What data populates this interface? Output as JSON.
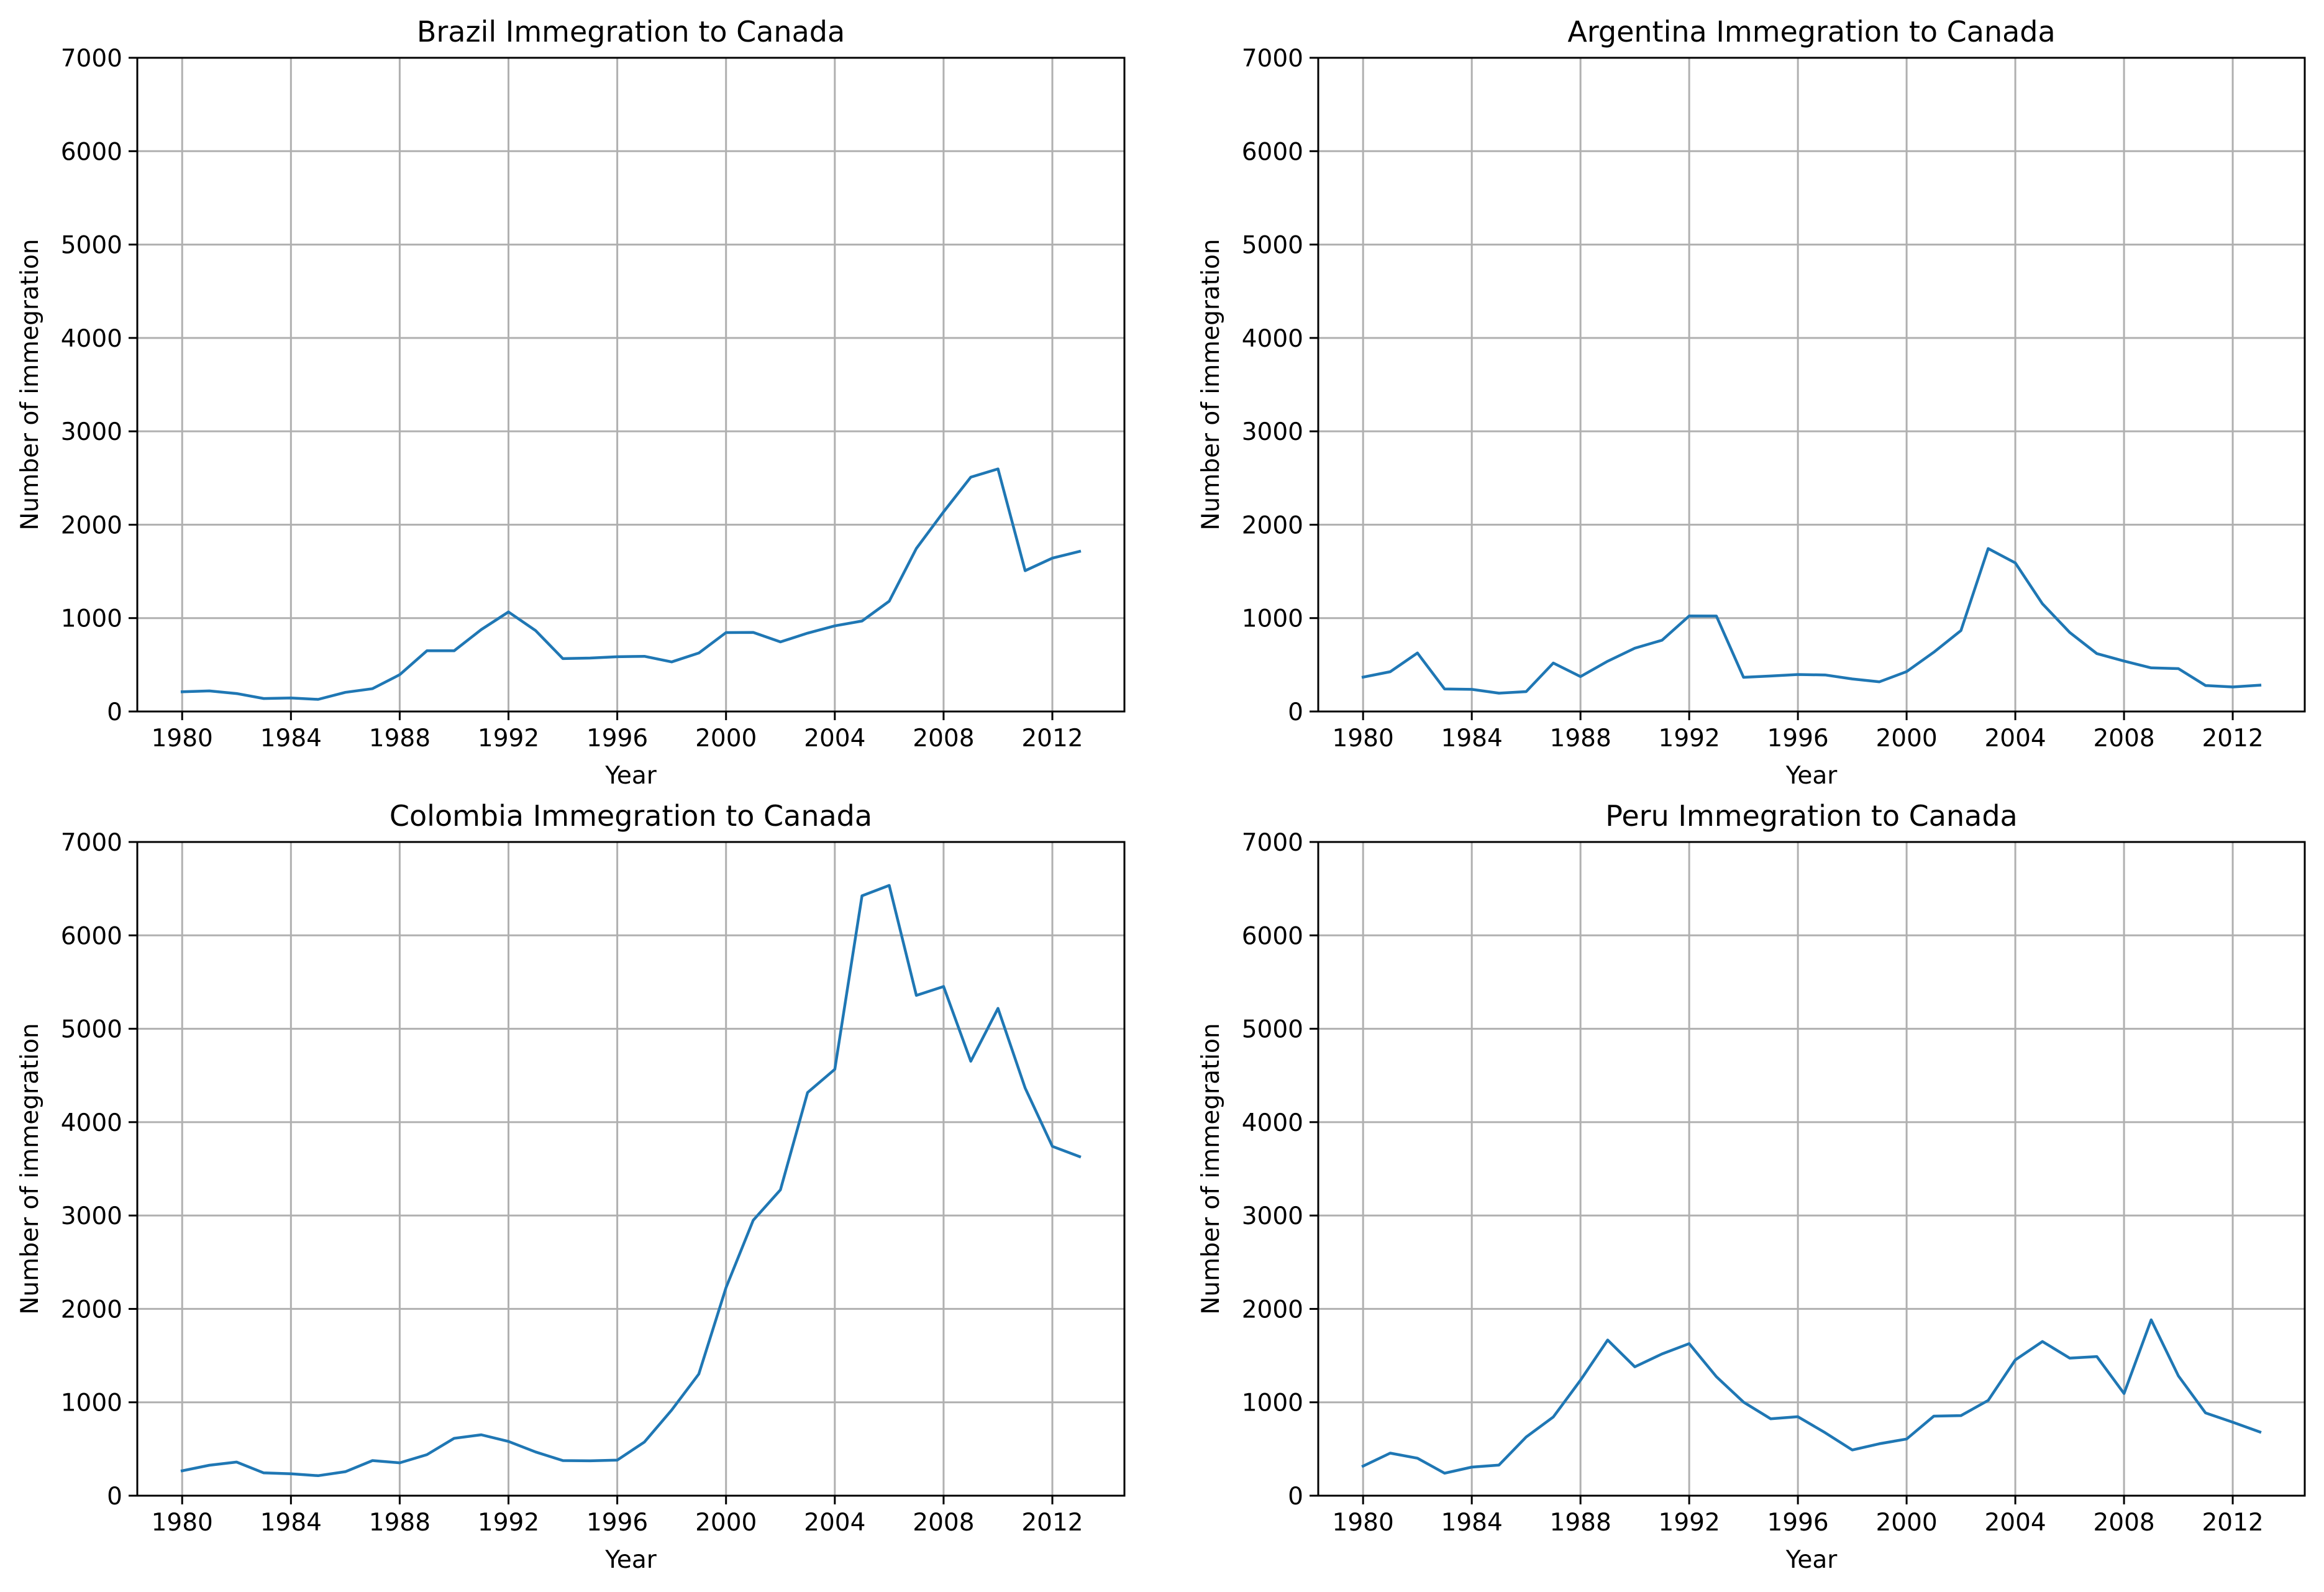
{
  "series_color": "#1f77b4",
  "chart_data": [
    {
      "type": "line",
      "title": "Brazil Immegration to Canada",
      "xlabel": "Year",
      "ylabel": "Number of immegration",
      "ylim": [
        0,
        7000
      ],
      "xlim": [
        1980,
        2013
      ],
      "grid": true,
      "xticks": [
        1980,
        1984,
        1988,
        1992,
        1996,
        2000,
        2004,
        2008,
        2012
      ],
      "yticks": [
        0,
        1000,
        2000,
        3000,
        4000,
        5000,
        6000,
        7000
      ],
      "x": [
        1980,
        1981,
        1982,
        1983,
        1984,
        1985,
        1986,
        1987,
        1988,
        1989,
        1990,
        1991,
        1992,
        1993,
        1994,
        1995,
        1996,
        1997,
        1998,
        1999,
        2000,
        2001,
        2002,
        2003,
        2004,
        2005,
        2006,
        2007,
        2008,
        2009,
        2010,
        2011,
        2012,
        2013
      ],
      "values": [
        211,
        220,
        192,
        139,
        145,
        130,
        205,
        244,
        394,
        650,
        650,
        877,
        1066,
        866,
        566,
        572,
        586,
        591,
        531,
        626,
        845,
        847,
        745,
        839,
        917,
        969,
        1181,
        1746,
        2138,
        2509,
        2598,
        1508,
        1642,
        1714
      ]
    },
    {
      "type": "line",
      "title": "Argentina Immegration to Canada",
      "xlabel": "Year",
      "ylabel": "Number of immegration",
      "ylim": [
        0,
        7000
      ],
      "xlim": [
        1980,
        2013
      ],
      "grid": true,
      "xticks": [
        1980,
        1984,
        1988,
        1992,
        1996,
        2000,
        2004,
        2008,
        2012
      ],
      "yticks": [
        0,
        1000,
        2000,
        3000,
        4000,
        5000,
        6000,
        7000
      ],
      "x": [
        1980,
        1981,
        1982,
        1983,
        1984,
        1985,
        1986,
        1987,
        1988,
        1989,
        1990,
        1991,
        1992,
        1993,
        1994,
        1995,
        1996,
        1997,
        1998,
        1999,
        2000,
        2001,
        2002,
        2003,
        2004,
        2005,
        2006,
        2007,
        2008,
        2009,
        2010,
        2011,
        2012,
        2013
      ],
      "values": [
        368,
        426,
        626,
        241,
        237,
        196,
        213,
        519,
        374,
        538,
        678,
        763,
        1023,
        1022,
        366,
        380,
        396,
        391,
        349,
        318,
        427,
        635,
        867,
        1745,
        1591,
        1153,
        847,
        620,
        540,
        467,
        459,
        278,
        263,
        282
      ]
    },
    {
      "type": "line",
      "title": "Colombia Immegration to Canada",
      "xlabel": "Year",
      "ylabel": "Number of immegration",
      "ylim": [
        0,
        7000
      ],
      "xlim": [
        1980,
        2013
      ],
      "grid": true,
      "xticks": [
        1980,
        1984,
        1988,
        1992,
        1996,
        2000,
        2004,
        2008,
        2012
      ],
      "yticks": [
        0,
        1000,
        2000,
        3000,
        4000,
        5000,
        6000,
        7000
      ],
      "x": [
        1980,
        1981,
        1982,
        1983,
        1984,
        1985,
        1986,
        1987,
        1988,
        1989,
        1990,
        1991,
        1992,
        1993,
        1994,
        1995,
        1996,
        1997,
        1998,
        1999,
        2000,
        2001,
        2002,
        2003,
        2004,
        2005,
        2006,
        2007,
        2008,
        2009,
        2010,
        2011,
        2012,
        2013
      ],
      "values": [
        266,
        326,
        360,
        244,
        235,
        214,
        257,
        376,
        352,
        439,
        614,
        652,
        581,
        468,
        376,
        373,
        381,
        575,
        917,
        1303,
        2228,
        2950,
        3276,
        4317,
        4566,
        6424,
        6535,
        5357,
        5452,
        4652,
        5218,
        4366,
        3741,
        3631
      ]
    },
    {
      "type": "line",
      "title": "Peru Immegration to Canada",
      "xlabel": "Year",
      "ylabel": "Number of immegration",
      "ylim": [
        0,
        7000
      ],
      "xlim": [
        1980,
        2013
      ],
      "grid": true,
      "xticks": [
        1980,
        1984,
        1988,
        1992,
        1996,
        2000,
        2004,
        2008,
        2012
      ],
      "yticks": [
        0,
        1000,
        2000,
        3000,
        4000,
        5000,
        6000,
        7000
      ],
      "x": [
        1980,
        1981,
        1982,
        1983,
        1984,
        1985,
        1986,
        1987,
        1988,
        1989,
        1990,
        1991,
        1992,
        1993,
        1994,
        1995,
        1996,
        1997,
        1998,
        1999,
        2000,
        2001,
        2002,
        2003,
        2004,
        2005,
        2006,
        2007,
        2008,
        2009,
        2010,
        2011,
        2012,
        2013
      ],
      "values": [
        317,
        456,
        401,
        241,
        306,
        328,
        628,
        843,
        1237,
        1667,
        1380,
        1518,
        1628,
        1274,
        1002,
        823,
        846,
        675,
        490,
        556,
        607,
        852,
        858,
        1020,
        1454,
        1651,
        1473,
        1490,
        1094,
        1883,
        1283,
        886,
        787,
        682
      ]
    }
  ]
}
